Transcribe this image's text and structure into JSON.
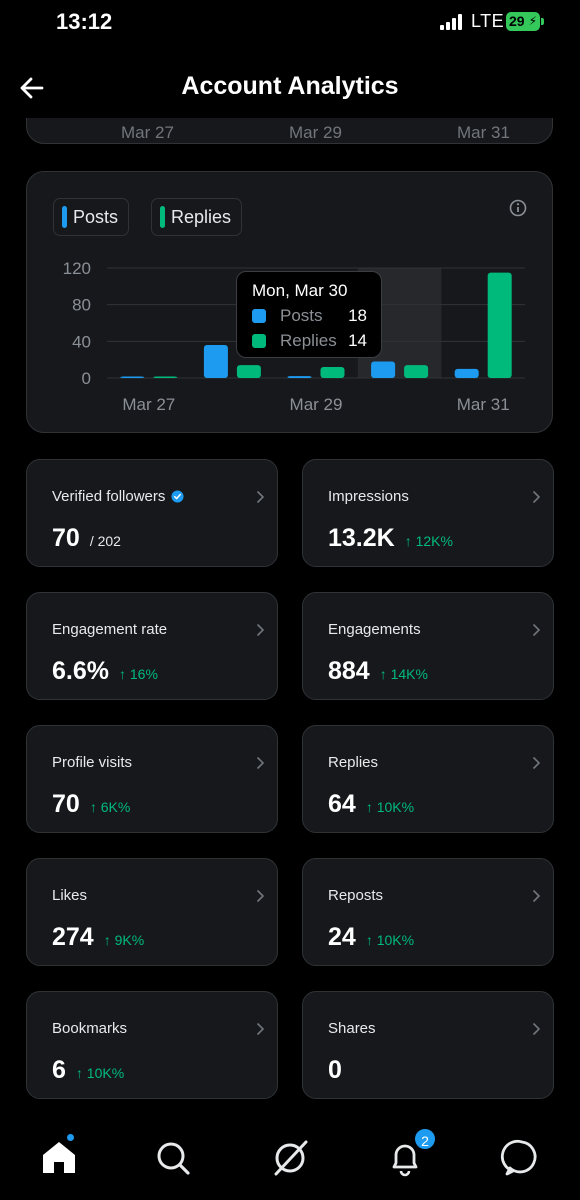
{
  "status_bar": {
    "time": "13:12",
    "network": "LTE",
    "battery": "29"
  },
  "header": {
    "title": "Account Analytics"
  },
  "prev_chart": {
    "x_labels": [
      "Mar 27",
      "Mar 29",
      "Mar 31"
    ]
  },
  "legend": [
    {
      "label": "Posts",
      "color": "#1d9bf0"
    },
    {
      "label": "Replies",
      "color": "#00ba7c"
    }
  ],
  "chart_data": {
    "type": "bar",
    "categories": [
      "Mar 27",
      "Mar 28",
      "Mar 29",
      "Mar 30",
      "Mar 31"
    ],
    "x_tick_labels": [
      "Mar 27",
      "Mar 29",
      "Mar 31"
    ],
    "y_ticks": [
      "120",
      "80",
      "40",
      "0"
    ],
    "ylim": [
      0,
      120
    ],
    "series": [
      {
        "name": "Posts",
        "color": "#1d9bf0",
        "values": [
          0,
          36,
          2,
          18,
          10
        ]
      },
      {
        "name": "Replies",
        "color": "#00ba7c",
        "values": [
          1,
          14,
          12,
          14,
          115
        ]
      }
    ],
    "highlighted": "Mar 30",
    "legend": "top-left",
    "grid": true
  },
  "tooltip": {
    "title": "Mon, Mar 30",
    "rows": [
      {
        "label": "Posts",
        "value": "18",
        "color": "#1d9bf0"
      },
      {
        "label": "Replies",
        "value": "14",
        "color": "#00ba7c"
      }
    ]
  },
  "stats": [
    {
      "label": "Verified followers",
      "value": "70",
      "sub": "/ 202",
      "verified": true
    },
    {
      "label": "Impressions",
      "value": "13.2K",
      "delta": "↑ 12K%"
    },
    {
      "label": "Engagement rate",
      "value": "6.6%",
      "delta": "↑ 16%"
    },
    {
      "label": "Engagements",
      "value": "884",
      "delta": "↑ 14K%"
    },
    {
      "label": "Profile visits",
      "value": "70",
      "delta": "↑ 6K%"
    },
    {
      "label": "Replies",
      "value": "64",
      "delta": "↑ 10K%"
    },
    {
      "label": "Likes",
      "value": "274",
      "delta": "↑ 9K%"
    },
    {
      "label": "Reposts",
      "value": "24",
      "delta": "↑ 10K%"
    },
    {
      "label": "Bookmarks",
      "value": "6",
      "delta": "↑ 10K%"
    },
    {
      "label": "Shares",
      "value": "0"
    }
  ],
  "tab_bar": {
    "items": [
      "home-icon",
      "search-icon",
      "grok-icon",
      "bell-icon",
      "messages-icon"
    ],
    "notification_count": "2"
  },
  "colors": {
    "accent": "#1d9bf0",
    "positive": "#00ba7c",
    "card": "#16181c",
    "border": "#2f3336"
  }
}
